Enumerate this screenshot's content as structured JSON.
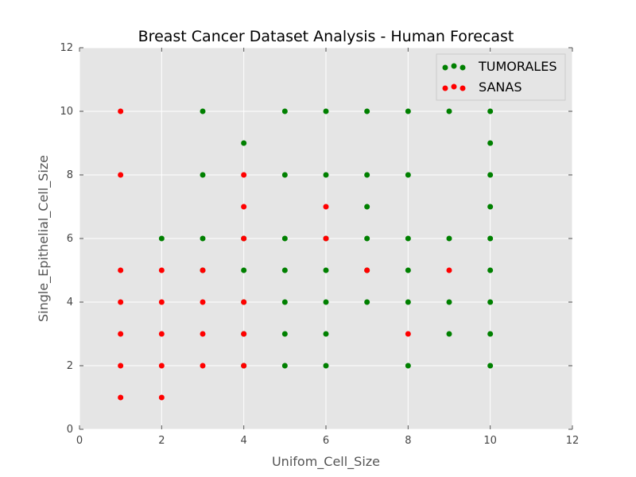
{
  "chart_data": {
    "type": "scatter",
    "title": "Breast Cancer Dataset Analysis - Human Forecast",
    "xlabel": "Unifom_Cell_Size",
    "ylabel": "Single_Epithelial_Cell_Size",
    "xlim": [
      0,
      12
    ],
    "ylim": [
      0,
      12
    ],
    "xticks": [
      "0",
      "2",
      "4",
      "6",
      "8",
      "10",
      "12"
    ],
    "yticks": [
      "0",
      "2",
      "4",
      "6",
      "8",
      "10",
      "12"
    ],
    "grid": true,
    "legend_position": "top-right",
    "series": [
      {
        "name": "TUMORALES",
        "color": "#008000",
        "points": [
          [
            2,
            6
          ],
          [
            3,
            10
          ],
          [
            3,
            8
          ],
          [
            3,
            6
          ],
          [
            3,
            5
          ],
          [
            4,
            9
          ],
          [
            4,
            6
          ],
          [
            4,
            5
          ],
          [
            4,
            4
          ],
          [
            4,
            3
          ],
          [
            4,
            2
          ],
          [
            5,
            10
          ],
          [
            5,
            8
          ],
          [
            5,
            6
          ],
          [
            5,
            5
          ],
          [
            5,
            4
          ],
          [
            5,
            3
          ],
          [
            5,
            2
          ],
          [
            6,
            10
          ],
          [
            6,
            8
          ],
          [
            6,
            6
          ],
          [
            6,
            5
          ],
          [
            6,
            4
          ],
          [
            6,
            3
          ],
          [
            6,
            2
          ],
          [
            7,
            10
          ],
          [
            7,
            8
          ],
          [
            7,
            7
          ],
          [
            7,
            6
          ],
          [
            7,
            5
          ],
          [
            7,
            4
          ],
          [
            8,
            10
          ],
          [
            8,
            8
          ],
          [
            8,
            6
          ],
          [
            8,
            5
          ],
          [
            8,
            4
          ],
          [
            8,
            2
          ],
          [
            9,
            10
          ],
          [
            9,
            6
          ],
          [
            9,
            4
          ],
          [
            9,
            3
          ],
          [
            10,
            10
          ],
          [
            10,
            9
          ],
          [
            10,
            8
          ],
          [
            10,
            7
          ],
          [
            10,
            6
          ],
          [
            10,
            5
          ],
          [
            10,
            4
          ],
          [
            10,
            3
          ],
          [
            10,
            2
          ]
        ]
      },
      {
        "name": "SANAS",
        "color": "#ff0000",
        "points": [
          [
            1,
            10
          ],
          [
            1,
            8
          ],
          [
            1,
            5
          ],
          [
            1,
            4
          ],
          [
            1,
            3
          ],
          [
            1,
            2
          ],
          [
            1,
            1
          ],
          [
            2,
            5
          ],
          [
            2,
            4
          ],
          [
            2,
            3
          ],
          [
            2,
            2
          ],
          [
            2,
            1
          ],
          [
            3,
            5
          ],
          [
            3,
            4
          ],
          [
            3,
            3
          ],
          [
            3,
            2
          ],
          [
            4,
            8
          ],
          [
            4,
            7
          ],
          [
            4,
            6
          ],
          [
            4,
            4
          ],
          [
            4,
            3
          ],
          [
            4,
            2
          ],
          [
            6,
            7
          ],
          [
            6,
            6
          ],
          [
            7,
            5
          ],
          [
            8,
            3
          ],
          [
            9,
            5
          ]
        ]
      }
    ]
  },
  "style": {
    "plot_background": "#e5e5e5",
    "grid_color": "#ffffff",
    "axis_text_color": "#555555"
  }
}
